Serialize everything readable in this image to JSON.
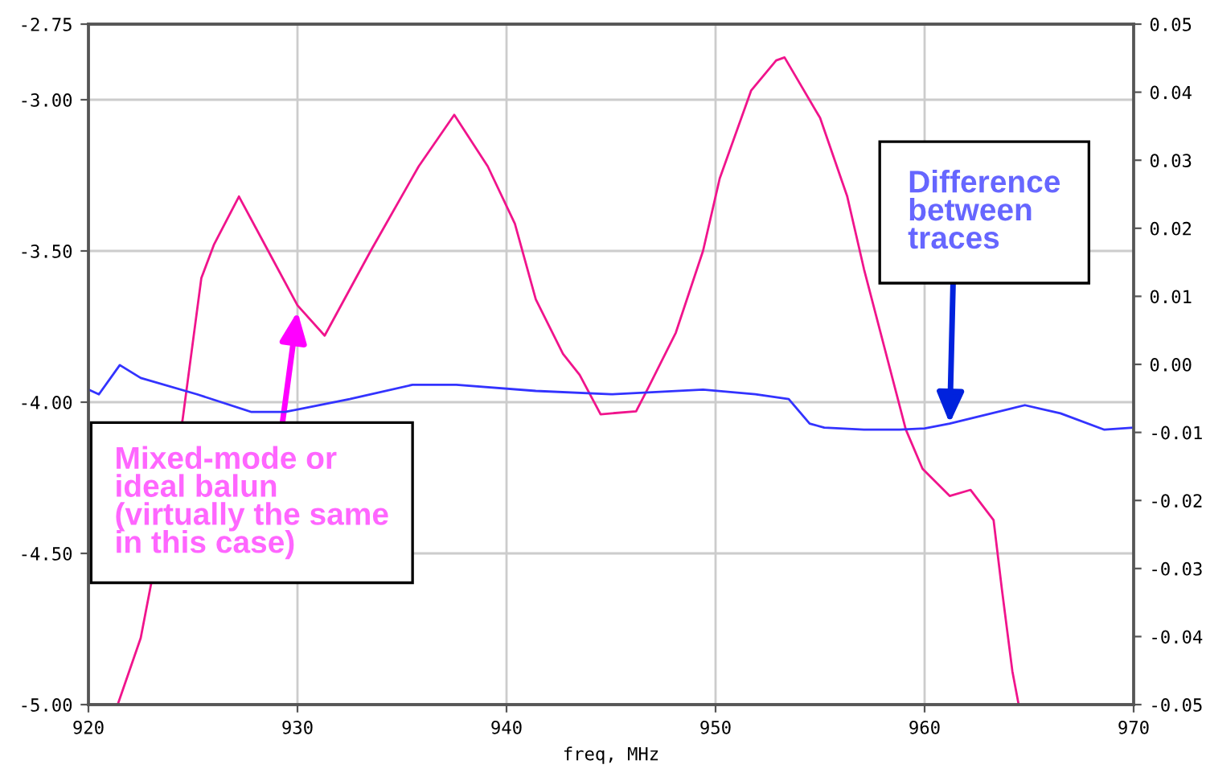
{
  "chart_data": {
    "type": "line",
    "xlabel": "freq, MHz",
    "xlim": [
      920,
      970
    ],
    "xticks": [
      920,
      930,
      940,
      950,
      960,
      970
    ],
    "ylim": [
      -5.0,
      -2.75
    ],
    "yticks": [
      {
        "value": -5.0,
        "label": "-5.00"
      },
      {
        "value": -4.5,
        "label": "-4.50"
      },
      {
        "value": -4.0,
        "label": "-4.00"
      },
      {
        "value": -3.5,
        "label": "-3.50"
      },
      {
        "value": -3.0,
        "label": "-3.00"
      },
      {
        "value": -2.75,
        "label": "-2.75"
      }
    ],
    "y2lim": [
      -0.05,
      0.05
    ],
    "y2ticks": [
      {
        "value": -0.05,
        "label": "-0.05"
      },
      {
        "value": -0.04,
        "label": "-0.04"
      },
      {
        "value": -0.03,
        "label": "-0.03"
      },
      {
        "value": -0.02,
        "label": "-0.02"
      },
      {
        "value": -0.01,
        "label": "-0.01"
      },
      {
        "value": 0.0,
        "label": "0.00"
      },
      {
        "value": 0.01,
        "label": "0.01"
      },
      {
        "value": 0.02,
        "label": "0.02"
      },
      {
        "value": 0.03,
        "label": "0.03"
      },
      {
        "value": 0.04,
        "label": "0.04"
      },
      {
        "value": 0.05,
        "label": "0.05"
      }
    ],
    "grid": true,
    "marker": "none",
    "line_style": "solid",
    "series": [
      {
        "color": "#f0148c",
        "x": [
          921.4,
          922.5,
          924.5,
          925.4,
          926.0,
          927.2,
          928.6,
          930.0,
          931.3,
          933.5,
          935.8,
          937.5,
          939.1,
          940.4,
          941.4,
          942.7,
          943.5,
          944.5,
          946.2,
          946.8,
          948.1,
          949.4,
          950.2,
          951.7,
          952.9,
          953.3,
          955.0,
          956.3,
          957.1,
          959.1,
          959.9,
          961.2,
          962.2,
          963.3,
          963.7,
          964.2,
          964.5
        ],
        "values": [
          -5.0,
          -4.78,
          -4.06,
          -3.59,
          -3.48,
          -3.32,
          -3.5,
          -3.68,
          -3.78,
          -3.5,
          -3.22,
          -3.05,
          -3.22,
          -3.41,
          -3.66,
          -3.84,
          -3.91,
          -4.04,
          -4.03,
          -3.95,
          -3.77,
          -3.5,
          -3.26,
          -2.97,
          -2.87,
          -2.86,
          -3.06,
          -3.32,
          -3.56,
          -4.09,
          -4.22,
          -4.31,
          -4.29,
          -4.39,
          -4.62,
          -4.89,
          -5.0
        ]
      },
      {
        "color": "#3333ff",
        "axis": "y2",
        "x": [
          920,
          920.5,
          921.5,
          922.5,
          925.2,
          927.8,
          929.4,
          932.5,
          935.5,
          937.6,
          941.4,
          945,
          949.4,
          951.9,
          953.5,
          954.5,
          955.2,
          957.1,
          958.8,
          960,
          961.2,
          964.8,
          966.5,
          968.6,
          970
        ],
        "values": [
          -0.0037,
          -0.0044,
          -0.0001,
          -0.002,
          -0.0044,
          -0.007,
          -0.007,
          -0.0051,
          -0.003,
          -0.003,
          -0.0039,
          -0.0044,
          -0.0037,
          -0.0044,
          -0.0051,
          -0.0087,
          -0.0093,
          -0.0096,
          -0.0096,
          -0.0094,
          -0.0087,
          -0.006,
          -0.0072,
          -0.0096,
          -0.0093
        ]
      }
    ],
    "annotations": [
      {
        "text": "Mixed-mode or\nideal balun\n(virtually the same\nin this case)",
        "x": 930,
        "y": -3.7
      },
      {
        "text": "Difference\nbetween\ntraces",
        "x": 961.2,
        "y": -4.07
      }
    ]
  }
}
